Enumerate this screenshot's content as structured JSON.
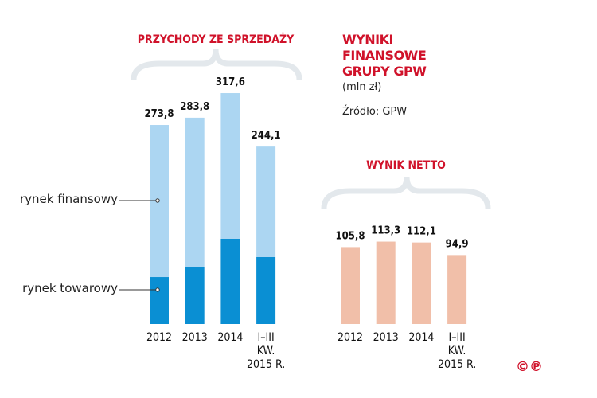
{
  "title": "WYNIKI FINANSOWE GRUPY GPW",
  "unit": "(mln zł)",
  "source": "Źródło: GPW",
  "copyright_mark": "©℗",
  "chart_data": [
    {
      "type": "bar",
      "stacked": true,
      "title": "PRZYCHODY ZE SPRZEDAŻY",
      "categories": [
        "2012",
        "2013",
        "2014",
        "I–III KW. 2015 R."
      ],
      "totals": [
        273.8,
        283.8,
        317.6,
        244.1
      ],
      "total_labels": [
        "273,8",
        "283,8",
        "317,6",
        "244,1"
      ],
      "series": [
        {
          "name": "rynek towarowy",
          "values": [
            64.6,
            77.8,
            117.2,
            92.0
          ],
          "color": "#0a8fd3"
        },
        {
          "name": "rynek finansowy",
          "values": [
            209.2,
            206.0,
            200.4,
            152.1
          ],
          "color": "#acd6f2"
        }
      ],
      "ylim": [
        0,
        330
      ]
    },
    {
      "type": "bar",
      "title": "WYNIK NETTO",
      "categories": [
        "2012",
        "2013",
        "2014",
        "I–III KW. 2015 R."
      ],
      "values": [
        105.8,
        113.3,
        112.1,
        94.9
      ],
      "value_labels": [
        "105,8",
        "113,3",
        "112,1",
        "94,9"
      ],
      "color": "#f1bfa9",
      "ylim": [
        0,
        330
      ]
    }
  ]
}
